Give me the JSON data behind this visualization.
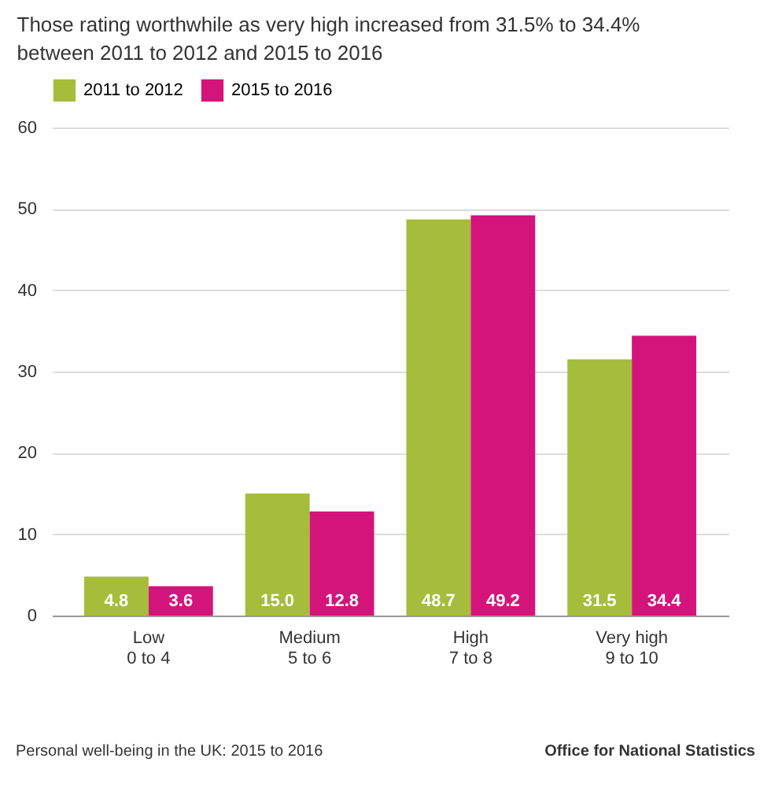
{
  "chart_data": {
    "type": "bar",
    "title": "Those rating worthwhile as very high increased from 31.5% to 34.4% between 2011 to 2012 and 2015 to 2016",
    "categories": [
      "Low\n0 to 4",
      "Medium\n5 to 6",
      "High\n7 to 8",
      "Very high\n9 to 10"
    ],
    "series": [
      {
        "name": "2011 to 2012",
        "color": "#a5bd3a",
        "values": [
          4.8,
          15.0,
          48.7,
          31.5
        ],
        "value_labels": [
          "4.8",
          "15.0",
          "48.7",
          "31.5"
        ]
      },
      {
        "name": "2015 to 2016",
        "color": "#d5147b",
        "values": [
          3.6,
          12.8,
          49.2,
          34.4
        ],
        "value_labels": [
          "3.6",
          "12.8",
          "49.2",
          "34.4"
        ]
      }
    ],
    "ylim": [
      0,
      60
    ],
    "yticks": [
      0,
      10,
      20,
      30,
      40,
      50,
      60
    ],
    "grid": "y",
    "legend": "top left",
    "annotations": [
      "Personal well-being in the UK: 2015 to 2016",
      "Office for National Statistics"
    ]
  }
}
